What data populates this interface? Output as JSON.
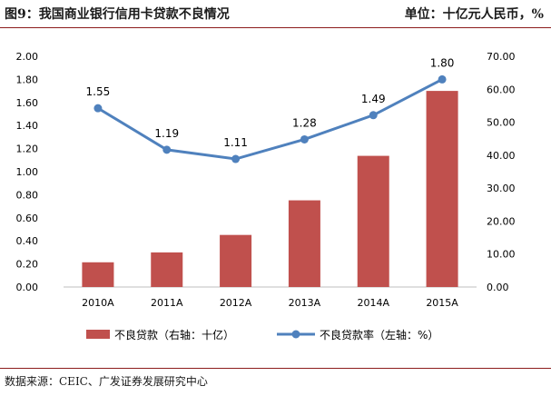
{
  "header": {
    "title": "图9：我国商业银行信用卡贷款不良情况",
    "unit": "单位：十亿元人民币，%"
  },
  "footer": {
    "source": "数据来源：CEIC、广发证券发展研究中心"
  },
  "colors": {
    "bar": "#c0504d",
    "line": "#4f81bd",
    "rule": "#8c1c1c",
    "text": "#1a1a1a"
  },
  "chart_data": {
    "type": "bar",
    "categories": [
      "2010A",
      "2011A",
      "2012A",
      "2013A",
      "2014A",
      "2015A"
    ],
    "series": [
      {
        "name": "不良贷款（右轴：十亿）",
        "type": "bar",
        "axis": "right",
        "values": [
          7.5,
          10.5,
          15.8,
          26.3,
          39.8,
          59.5
        ]
      },
      {
        "name": "不良贷款率（左轴：%）",
        "type": "line",
        "axis": "left",
        "values": [
          1.55,
          1.19,
          1.11,
          1.28,
          1.49,
          1.8
        ],
        "labels": [
          "1.55",
          "1.19",
          "1.11",
          "1.28",
          "1.49",
          "1.80"
        ]
      }
    ],
    "left_axis": {
      "ylim": [
        0,
        2.0
      ],
      "ticks": [
        "0.00",
        "0.20",
        "0.40",
        "0.60",
        "0.80",
        "1.00",
        "1.20",
        "1.40",
        "1.60",
        "1.80",
        "2.00"
      ]
    },
    "right_axis": {
      "ylim": [
        0,
        70
      ],
      "ticks": [
        "0.00",
        "10.00",
        "20.00",
        "30.00",
        "40.00",
        "50.00",
        "60.00",
        "70.00"
      ]
    },
    "grid": false,
    "legend_position": "bottom"
  }
}
